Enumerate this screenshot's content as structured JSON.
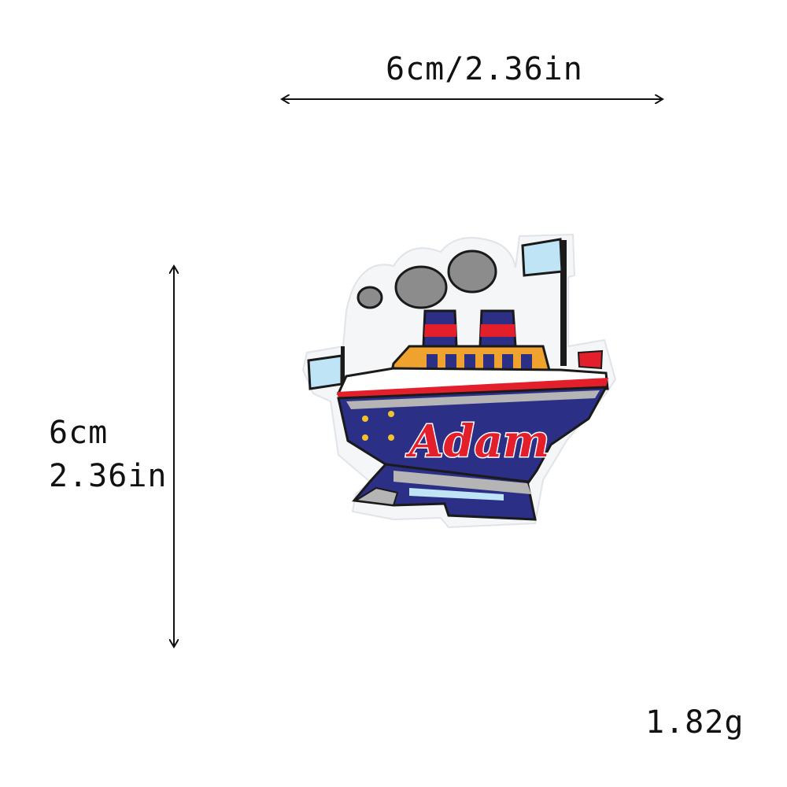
{
  "dimensions": {
    "width_label": "6cm/2.36in",
    "height_label_cm": "6cm",
    "height_label_in": "2.36in"
  },
  "weight_label": "1.82g",
  "patch": {
    "name_text": "Adam",
    "colors": {
      "hull_blue": "#2b2f86",
      "stripe_red": "#e21f2b",
      "deck_orange": "#f0a22e",
      "smoke_gray": "#8c8c8c",
      "border_white": "#f4f6f8",
      "flag_light_blue": "#bfe4f5",
      "trim_gray": "#b5b5b5",
      "outline_black": "#1a1a1a"
    }
  }
}
